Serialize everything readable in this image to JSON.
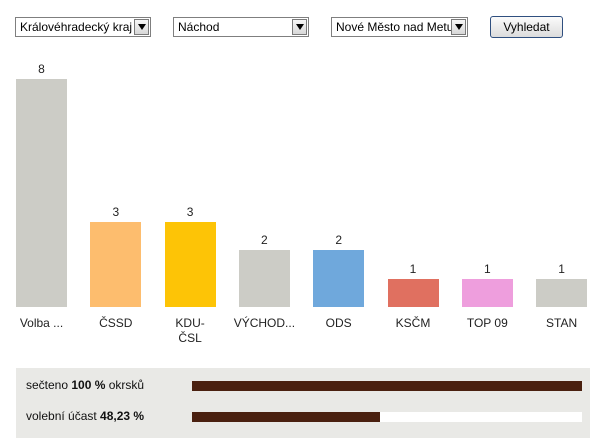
{
  "filters": {
    "region": "Královéhradecký kraj",
    "district": "Náchod",
    "municipality": "Nové Město nad Metují",
    "search_label": "Vyhledat"
  },
  "chart_data": {
    "type": "bar",
    "categories": [
      "Volba ...",
      "ČSSD",
      "KDU-\nČSL",
      "VÝCHOD...",
      "ODS",
      "KSČM",
      "TOP 09",
      "STAN"
    ],
    "values": [
      8,
      3,
      3,
      2,
      2,
      1,
      1,
      1
    ],
    "colors": [
      "#ccccc6",
      "#fdbd6e",
      "#fdc406",
      "#ccccc6",
      "#6fa8dc",
      "#e07060",
      "#ee9edd",
      "#ccccc6"
    ],
    "ylim": [
      0,
      8
    ]
  },
  "summary": {
    "counted_prefix": "sečteno ",
    "counted_value": "100 %",
    "counted_suffix": " okrsků",
    "counted_fraction": 1.0,
    "turnout_prefix": "volební účast ",
    "turnout_value": "48,23 %",
    "turnout_fraction": 0.4823
  }
}
